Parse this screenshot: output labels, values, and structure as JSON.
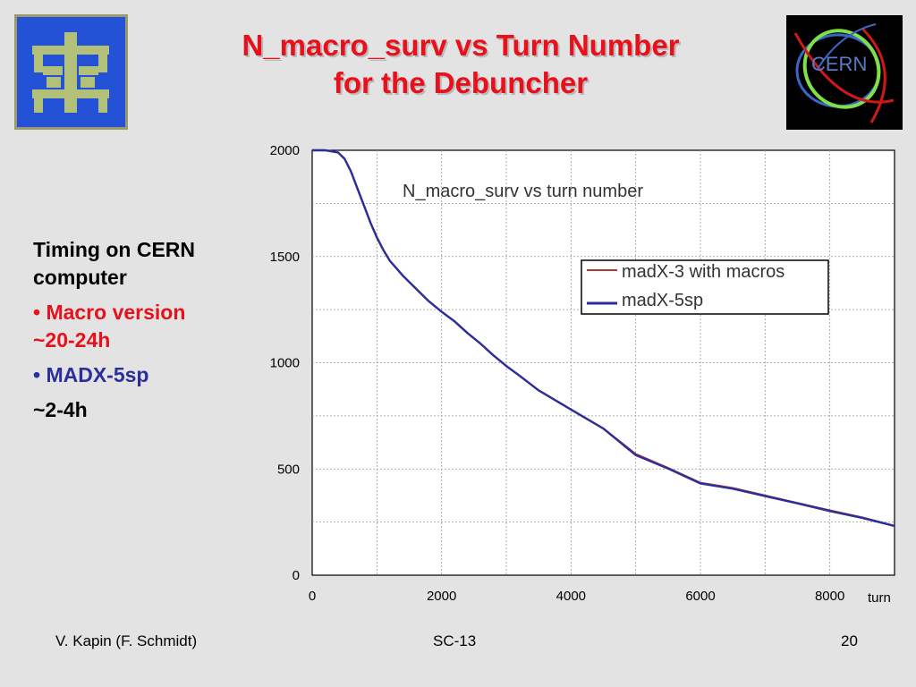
{
  "slide": {
    "title_line1": "N_macro_surv vs Turn Number",
    "title_line2": "for the Debuncher"
  },
  "notes": {
    "heading": "Timing on CERN computer",
    "macro_line1": "• Macro version",
    "macro_line2": "~20-24h",
    "madx_line1": "• MADX-5sp",
    "madx_line2": "~2-4h"
  },
  "logos": {
    "right_text": "CERN",
    "left_bg": "#2452d6",
    "left_fg": "#b3c07a"
  },
  "footer": {
    "author": "V. Kapin (F. Schmidt)",
    "event": "SC-13",
    "page": "20"
  },
  "chart_data": {
    "type": "line",
    "title": "N_macro_surv  vs turn number",
    "xlabel": "turn",
    "ylabel": "",
    "xlim": [
      0,
      9000
    ],
    "ylim": [
      0,
      2000
    ],
    "xticks": [
      0,
      2000,
      4000,
      6000,
      8000
    ],
    "yticks": [
      0,
      500,
      1000,
      1500,
      2000
    ],
    "grid": true,
    "legend_position": "top-right",
    "x": [
      0,
      200,
      400,
      500,
      600,
      700,
      800,
      900,
      1000,
      1100,
      1200,
      1400,
      1600,
      1800,
      2000,
      2200,
      2400,
      2600,
      2800,
      3000,
      3200,
      3500,
      4000,
      4500,
      5000,
      5500,
      6000,
      6500,
      7000,
      7500,
      8000,
      8500,
      9000
    ],
    "series": [
      {
        "name": "madX-3 with macros",
        "color": "#b03a2e",
        "values": [
          2000,
          2000,
          1990,
          1960,
          1900,
          1820,
          1740,
          1660,
          1590,
          1530,
          1480,
          1410,
          1350,
          1290,
          1240,
          1195,
          1140,
          1090,
          1035,
          985,
          940,
          870,
          780,
          690,
          570,
          505,
          435,
          410,
          375,
          340,
          305,
          272,
          232
        ]
      },
      {
        "name": "madX-5sp",
        "color": "#2b2f9b",
        "values": [
          2000,
          2000,
          1990,
          1960,
          1900,
          1820,
          1740,
          1660,
          1590,
          1530,
          1480,
          1410,
          1350,
          1290,
          1240,
          1195,
          1140,
          1090,
          1035,
          985,
          940,
          870,
          780,
          690,
          565,
          502,
          432,
          407,
          372,
          338,
          302,
          270,
          232
        ]
      }
    ]
  }
}
